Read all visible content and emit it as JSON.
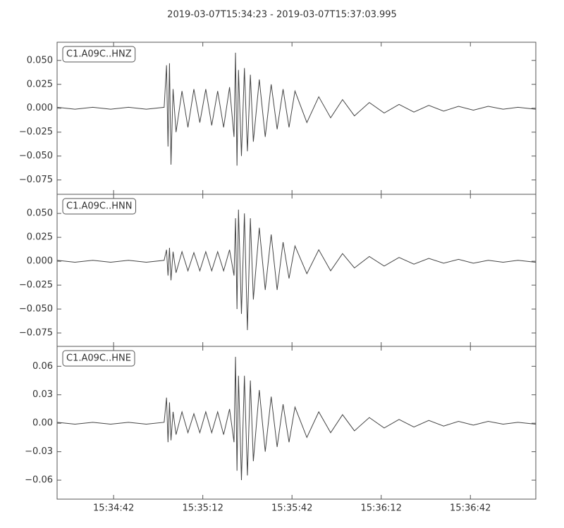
{
  "title": "2019-03-07T15:34:23  -  2019-03-07T15:37:03.995",
  "chart_data": [
    {
      "type": "line",
      "label": "C1.A09C..HNZ",
      "color": "#444444",
      "xlim": [
        0,
        160.995
      ],
      "ylim": [
        -0.09,
        0.069
      ],
      "yticks": [
        {
          "value": 0.05,
          "label": "0.050"
        },
        {
          "value": 0.025,
          "label": "0.025"
        },
        {
          "value": 0,
          "label": "0.000"
        },
        {
          "value": -0.025,
          "label": "−0.025"
        },
        {
          "value": -0.05,
          "label": "−0.050"
        },
        {
          "value": -0.075,
          "label": "−0.075"
        }
      ],
      "x": [
        0,
        6,
        12,
        18,
        24,
        30,
        36,
        36.8,
        37.3,
        37.8,
        38.3,
        39,
        40,
        42,
        44,
        46,
        48,
        50,
        52,
        54,
        56,
        58,
        59.5,
        60,
        60.5,
        61,
        62,
        63,
        64,
        65,
        66,
        68,
        70,
        72,
        74,
        76,
        78,
        80,
        84,
        88,
        92,
        96,
        100,
        105,
        110,
        115,
        120,
        125,
        130,
        135,
        140,
        145,
        150,
        155,
        160.9
      ],
      "values": [
        0.001,
        -0.001,
        0.001,
        -0.001,
        0.001,
        -0.001,
        0.001,
        0.045,
        -0.04,
        0.047,
        -0.059,
        0.02,
        -0.025,
        0.018,
        -0.02,
        0.02,
        -0.015,
        0.02,
        -0.018,
        0.018,
        -0.02,
        0.022,
        -0.03,
        0.058,
        -0.06,
        0.04,
        -0.05,
        0.042,
        -0.045,
        0.035,
        -0.035,
        0.03,
        -0.03,
        0.025,
        -0.022,
        0.02,
        -0.02,
        0.018,
        -0.015,
        0.012,
        -0.01,
        0.009,
        -0.008,
        0.006,
        -0.005,
        0.004,
        -0.004,
        0.003,
        -0.003,
        0.002,
        -0.002,
        0.002,
        -0.001,
        0.001,
        -0.001
      ]
    },
    {
      "type": "line",
      "label": "C1.A09C..HNN",
      "color": "#444444",
      "xlim": [
        0,
        160.995
      ],
      "ylim": [
        -0.089,
        0.07
      ],
      "yticks": [
        {
          "value": 0.05,
          "label": "0.050"
        },
        {
          "value": 0.025,
          "label": "0.025"
        },
        {
          "value": 0,
          "label": "0.000"
        },
        {
          "value": -0.025,
          "label": "−0.025"
        },
        {
          "value": -0.05,
          "label": "−0.050"
        },
        {
          "value": -0.075,
          "label": "−0.075"
        }
      ],
      "x": [
        0,
        6,
        12,
        18,
        24,
        30,
        36,
        36.8,
        37.3,
        37.8,
        38.3,
        39,
        40,
        42,
        44,
        46,
        48,
        50,
        52,
        54,
        56,
        58,
        59.5,
        60,
        60.5,
        61,
        62,
        63,
        64,
        65,
        66,
        68,
        70,
        72,
        74,
        76,
        78,
        80,
        84,
        88,
        92,
        96,
        100,
        105,
        110,
        115,
        120,
        125,
        130,
        135,
        140,
        145,
        150,
        155,
        160.9
      ],
      "values": [
        0.001,
        -0.001,
        0.001,
        -0.001,
        0.001,
        -0.001,
        0.001,
        0.012,
        -0.015,
        0.014,
        -0.02,
        0.01,
        -0.012,
        0.01,
        -0.01,
        0.009,
        -0.01,
        0.01,
        -0.01,
        0.01,
        -0.01,
        0.012,
        -0.015,
        0.045,
        -0.05,
        0.054,
        -0.055,
        0.05,
        -0.072,
        0.045,
        -0.04,
        0.035,
        -0.03,
        0.028,
        -0.03,
        0.02,
        -0.018,
        0.016,
        -0.013,
        0.012,
        -0.01,
        0.008,
        -0.007,
        0.005,
        -0.005,
        0.004,
        -0.003,
        0.003,
        -0.002,
        0.002,
        -0.002,
        0.001,
        -0.001,
        0.001,
        -0.001
      ]
    },
    {
      "type": "line",
      "label": "C1.A09C..HNE",
      "color": "#444444",
      "xlim": [
        0,
        160.995
      ],
      "ylim": [
        -0.08,
        0.081
      ],
      "yticks": [
        {
          "value": 0.06,
          "label": "0.06"
        },
        {
          "value": 0.03,
          "label": "0.03"
        },
        {
          "value": 0,
          "label": "0.00"
        },
        {
          "value": -0.03,
          "label": "−0.03"
        },
        {
          "value": -0.06,
          "label": "−0.06"
        }
      ],
      "xticks": [
        {
          "value": 19,
          "label": "15:34:42"
        },
        {
          "value": 49,
          "label": "15:35:12"
        },
        {
          "value": 79,
          "label": "15:35:42"
        },
        {
          "value": 109,
          "label": "15:36:12"
        },
        {
          "value": 139,
          "label": "15:36:42"
        }
      ],
      "x": [
        0,
        6,
        12,
        18,
        24,
        30,
        36,
        36.8,
        37.3,
        37.8,
        38.3,
        39,
        40,
        42,
        44,
        46,
        48,
        50,
        52,
        54,
        56,
        58,
        59.5,
        60,
        60.5,
        61,
        62,
        63,
        64,
        65,
        66,
        68,
        70,
        72,
        74,
        76,
        78,
        80,
        84,
        88,
        92,
        96,
        100,
        105,
        110,
        115,
        120,
        125,
        130,
        135,
        140,
        145,
        150,
        155,
        160.9
      ],
      "values": [
        0.001,
        -0.001,
        0.001,
        -0.001,
        0.001,
        -0.001,
        0.001,
        0.027,
        -0.02,
        0.022,
        -0.018,
        0.012,
        -0.012,
        0.012,
        -0.01,
        0.01,
        -0.01,
        0.012,
        -0.01,
        0.012,
        -0.012,
        0.015,
        -0.02,
        0.07,
        -0.05,
        0.05,
        -0.06,
        0.05,
        -0.055,
        0.045,
        -0.04,
        0.035,
        -0.03,
        0.028,
        -0.025,
        0.02,
        -0.02,
        0.017,
        -0.015,
        0.012,
        -0.01,
        0.009,
        -0.008,
        0.006,
        -0.005,
        0.004,
        -0.004,
        0.003,
        -0.003,
        0.002,
        -0.002,
        0.002,
        -0.001,
        0.001,
        -0.001
      ]
    }
  ]
}
